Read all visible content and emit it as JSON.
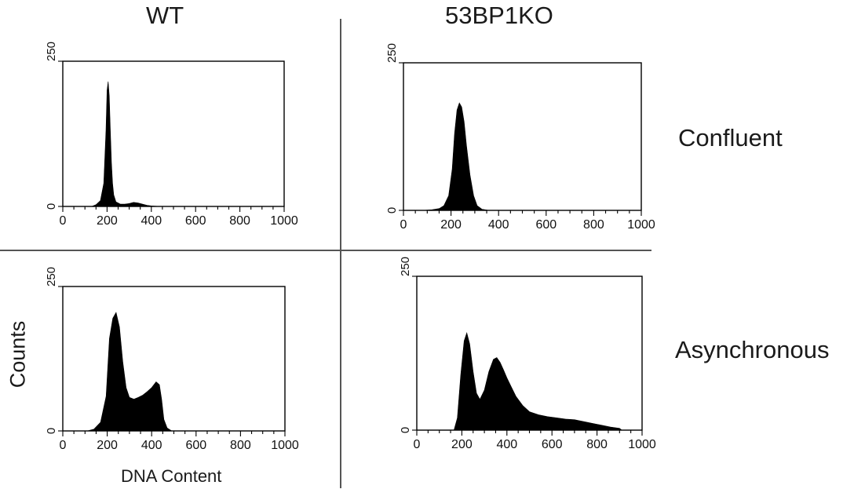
{
  "columns": [
    "WT",
    "53BP1KO"
  ],
  "rows": [
    "Confluent",
    "Asynchronous"
  ],
  "y_axis_label": "Counts",
  "x_axis_label": "DNA Content",
  "chart_data": [
    {
      "type": "area",
      "name": "WT Confluent",
      "xlim": [
        0,
        1000
      ],
      "ylim": [
        0,
        250
      ],
      "xticks": [
        0,
        200,
        400,
        600,
        800,
        1000
      ],
      "yticks": [
        0,
        250
      ],
      "grid": false,
      "x": [
        130,
        150,
        170,
        185,
        195,
        200,
        205,
        210,
        215,
        220,
        225,
        230,
        240,
        260,
        280,
        300,
        320,
        340,
        360,
        380,
        400,
        440
      ],
      "y": [
        0,
        3,
        10,
        40,
        130,
        200,
        215,
        190,
        130,
        75,
        40,
        20,
        8,
        4,
        4,
        5,
        7,
        6,
        4,
        2,
        1,
        0
      ]
    },
    {
      "type": "area",
      "name": "53BP1KO Confluent",
      "xlim": [
        0,
        1000
      ],
      "ylim": [
        0,
        250
      ],
      "xticks": [
        0,
        200,
        400,
        600,
        800,
        1000
      ],
      "yticks": [
        0,
        250
      ],
      "grid": false,
      "x": [
        80,
        120,
        150,
        170,
        190,
        205,
        215,
        225,
        235,
        245,
        255,
        265,
        280,
        295,
        310,
        330,
        360
      ],
      "y": [
        0,
        1,
        3,
        8,
        25,
        70,
        130,
        170,
        182,
        175,
        150,
        110,
        60,
        25,
        8,
        2,
        0
      ]
    },
    {
      "type": "area",
      "name": "WT Asynchronous",
      "xlim": [
        0,
        1000
      ],
      "ylim": [
        0,
        250
      ],
      "xticks": [
        0,
        200,
        400,
        600,
        800,
        1000
      ],
      "yticks": [
        0,
        250
      ],
      "grid": false,
      "x": [
        110,
        140,
        170,
        195,
        210,
        225,
        240,
        255,
        270,
        285,
        300,
        320,
        340,
        360,
        380,
        400,
        420,
        435,
        445,
        455,
        470,
        490
      ],
      "y": [
        0,
        3,
        15,
        60,
        160,
        195,
        205,
        180,
        120,
        75,
        58,
        55,
        58,
        62,
        68,
        75,
        85,
        80,
        55,
        20,
        5,
        0
      ]
    },
    {
      "type": "area",
      "name": "53BP1KO Asynchronous",
      "xlim": [
        0,
        1000
      ],
      "ylim": [
        0,
        250
      ],
      "xticks": [
        0,
        200,
        400,
        600,
        800,
        1000
      ],
      "yticks": [
        0,
        250
      ],
      "grid": false,
      "x": [
        165,
        180,
        195,
        210,
        222,
        235,
        250,
        265,
        280,
        300,
        320,
        340,
        355,
        370,
        385,
        400,
        420,
        440,
        470,
        500,
        540,
        580,
        620,
        660,
        700,
        740,
        780,
        820,
        860,
        900,
        910
      ],
      "y": [
        0,
        20,
        90,
        145,
        158,
        140,
        95,
        60,
        50,
        65,
        95,
        115,
        118,
        110,
        98,
        85,
        70,
        55,
        40,
        30,
        25,
        22,
        20,
        18,
        17,
        14,
        11,
        8,
        5,
        3,
        0
      ]
    }
  ]
}
